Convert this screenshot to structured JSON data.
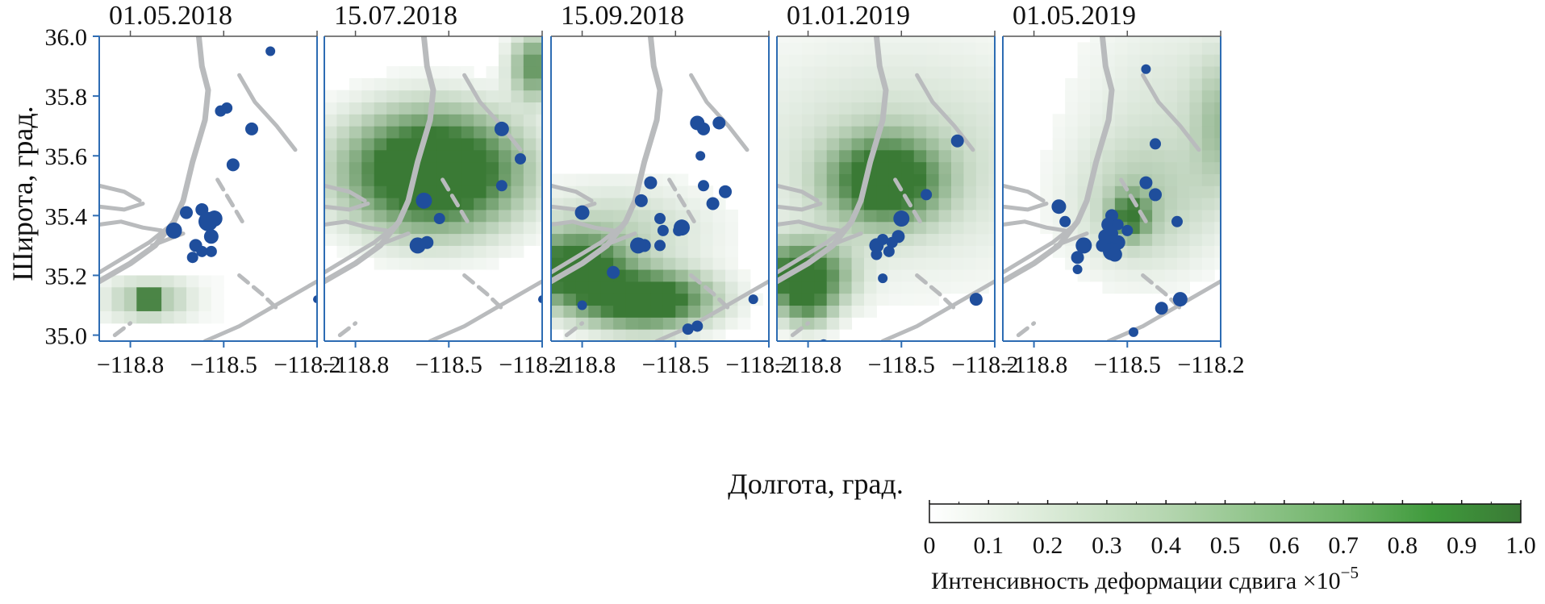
{
  "chart_data": {
    "type": "heatmap",
    "ylabel": "Широта, град.",
    "xlabel": "Долгота, град.",
    "xlim": [
      -118.9,
      -118.2
    ],
    "ylim": [
      34.98,
      36.0
    ],
    "xticks": [
      -118.8,
      -118.5,
      -118.2
    ],
    "xtick_labels": [
      "−118.8",
      "−118.5",
      "−118.2"
    ],
    "yticks": [
      35.0,
      35.2,
      35.4,
      35.6,
      35.8,
      36.0
    ],
    "ytick_labels": [
      "35.0",
      "35.2",
      "35.4",
      "35.6",
      "35.8",
      "36.0"
    ],
    "colorbar": {
      "label": "Интенсивность деформации сдвига ×10",
      "exponent": "−5",
      "range": [
        0,
        1.0
      ],
      "ticks": [
        0,
        0.1,
        0.2,
        0.3,
        0.4,
        0.5,
        0.6,
        0.7,
        0.8,
        0.9,
        1.0
      ],
      "tick_labels": [
        "0",
        "0.1",
        "0.2",
        "0.3",
        "0.4",
        "0.5",
        "0.6",
        "0.7",
        "0.8",
        "0.9",
        "1.0"
      ],
      "color_low": "#ffffff",
      "color_high": "#3a7a35"
    },
    "colors": {
      "quake": "#1f4e9c",
      "fault": "#b9bbbd",
      "frame": "#2d6cb3"
    },
    "faults": [
      [
        [
          -118.58,
          36.0
        ],
        [
          -118.57,
          35.9
        ],
        [
          -118.55,
          35.82
        ],
        [
          -118.56,
          35.72
        ],
        [
          -118.6,
          35.58
        ],
        [
          -118.63,
          35.45
        ],
        [
          -118.66,
          35.38
        ],
        [
          -118.72,
          35.3
        ],
        [
          -118.8,
          35.24
        ],
        [
          -118.9,
          35.18
        ]
      ],
      [
        [
          -118.68,
          35.36
        ],
        [
          -118.74,
          35.31
        ],
        [
          -118.82,
          35.26
        ],
        [
          -118.9,
          35.21
        ]
      ],
      [
        [
          -118.9,
          35.37
        ],
        [
          -118.83,
          35.38
        ],
        [
          -118.76,
          35.36
        ],
        [
          -118.7,
          35.35
        ]
      ],
      [
        [
          -118.9,
          35.43
        ],
        [
          -118.82,
          35.42
        ],
        [
          -118.76,
          35.44
        ]
      ],
      [
        [
          -118.9,
          35.5
        ],
        [
          -118.82,
          35.48
        ],
        [
          -118.77,
          35.45
        ]
      ],
      [
        [
          -118.73,
          35.3
        ],
        [
          -118.63,
          35.34
        ]
      ],
      [
        [
          -118.52,
          35.52
        ],
        [
          -118.48,
          35.45
        ],
        [
          -118.44,
          35.38
        ]
      ],
      [
        [
          -118.45,
          35.2
        ],
        [
          -118.38,
          35.14
        ],
        [
          -118.33,
          35.09
        ]
      ],
      [
        [
          -118.56,
          34.98
        ],
        [
          -118.45,
          35.03
        ],
        [
          -118.35,
          35.09
        ],
        [
          -118.25,
          35.15
        ],
        [
          -118.2,
          35.18
        ]
      ],
      [
        [
          -118.85,
          35.0
        ],
        [
          -118.8,
          35.04
        ]
      ],
      [
        [
          -118.45,
          35.87
        ],
        [
          -118.4,
          35.78
        ],
        [
          -118.33,
          35.7
        ],
        [
          -118.27,
          35.62
        ]
      ]
    ],
    "panels": [
      {
        "date": "01.05.2018",
        "grid": [
          {
            "lon0": -118.9,
            "lat0": 35.16,
            "cols": [
              0.06,
              0.1,
              0.14,
              0.16,
              0.16,
              0.14,
              0.1,
              0.06,
              0.03,
              0.02
            ]
          },
          {
            "lon0": -118.9,
            "lat0": 35.12,
            "cols": [
              0.1,
              0.2,
              0.3,
              0.9,
              0.9,
              0.3,
              0.2,
              0.1,
              0.05,
              0.02
            ]
          },
          {
            "lon0": -118.9,
            "lat0": 35.08,
            "cols": [
              0.1,
              0.2,
              0.3,
              0.9,
              0.9,
              0.3,
              0.2,
              0.1,
              0.05,
              0.02
            ]
          },
          {
            "lon0": -118.9,
            "lat0": 35.04,
            "cols": [
              0.06,
              0.1,
              0.14,
              0.2,
              0.2,
              0.14,
              0.1,
              0.06,
              0.03,
              0.02
            ]
          }
        ],
        "quakes": [
          [
            -118.35,
            35.95,
            6
          ],
          [
            -118.49,
            35.76,
            7
          ],
          [
            -118.51,
            35.75,
            7
          ],
          [
            -118.41,
            35.69,
            8
          ],
          [
            -118.47,
            35.57,
            8
          ],
          [
            -118.62,
            35.41,
            8
          ],
          [
            -118.57,
            35.42,
            8
          ],
          [
            -118.66,
            35.35,
            10
          ],
          [
            -118.55,
            35.38,
            12
          ],
          [
            -118.53,
            35.39,
            10
          ],
          [
            -118.54,
            35.33,
            9
          ],
          [
            -118.59,
            35.3,
            8
          ],
          [
            -118.54,
            35.28,
            7
          ],
          [
            -118.57,
            35.28,
            7
          ],
          [
            -118.6,
            35.26,
            7
          ],
          [
            -118.2,
            35.12,
            5
          ]
        ]
      },
      {
        "date": "15.07.2018",
        "grid": [],
        "quakes": [
          [
            -118.33,
            35.69,
            9
          ],
          [
            -118.27,
            35.59,
            7
          ],
          [
            -118.33,
            35.5,
            7
          ],
          [
            -118.58,
            35.45,
            10
          ],
          [
            -118.53,
            35.39,
            7
          ],
          [
            -118.57,
            35.31,
            8
          ],
          [
            -118.6,
            35.3,
            10
          ],
          [
            -118.2,
            35.12,
            5
          ]
        ]
      },
      {
        "date": "15.09.2018",
        "grid": [],
        "quakes": [
          [
            -118.43,
            35.71,
            9
          ],
          [
            -118.41,
            35.69,
            8
          ],
          [
            -118.36,
            35.71,
            8
          ],
          [
            -118.42,
            35.6,
            6
          ],
          [
            -118.41,
            35.5,
            7
          ],
          [
            -118.58,
            35.51,
            8
          ],
          [
            -118.34,
            35.48,
            8
          ],
          [
            -118.61,
            35.45,
            8
          ],
          [
            -118.38,
            35.44,
            8
          ],
          [
            -118.8,
            35.41,
            9
          ],
          [
            -118.55,
            35.39,
            7
          ],
          [
            -118.48,
            35.36,
            10
          ],
          [
            -118.49,
            35.35,
            7
          ],
          [
            -118.54,
            35.35,
            7
          ],
          [
            -118.6,
            35.3,
            8
          ],
          [
            -118.62,
            35.3,
            10
          ],
          [
            -118.55,
            35.3,
            7
          ],
          [
            -118.7,
            35.21,
            8
          ],
          [
            -118.8,
            35.1,
            6
          ],
          [
            -118.43,
            35.03,
            7
          ],
          [
            -118.46,
            35.02,
            7
          ],
          [
            -118.25,
            35.12,
            6
          ]
        ]
      },
      {
        "date": "01.01.2019",
        "grid": [],
        "quakes": [
          [
            -118.32,
            35.65,
            8
          ],
          [
            -118.42,
            35.47,
            7
          ],
          [
            -118.5,
            35.39,
            10
          ],
          [
            -118.56,
            35.32,
            7
          ],
          [
            -118.58,
            35.3,
            9
          ],
          [
            -118.51,
            35.33,
            8
          ],
          [
            -118.53,
            35.31,
            7
          ],
          [
            -118.54,
            35.28,
            7
          ],
          [
            -118.58,
            35.27,
            7
          ],
          [
            -118.56,
            35.19,
            6
          ],
          [
            -118.26,
            35.12,
            8
          ],
          [
            -118.75,
            34.97,
            6
          ]
        ]
      },
      {
        "date": "01.05.2019",
        "grid": [],
        "quakes": [
          [
            -118.44,
            35.89,
            6
          ],
          [
            -118.41,
            35.64,
            7
          ],
          [
            -118.44,
            35.51,
            8
          ],
          [
            -118.41,
            35.47,
            8
          ],
          [
            -118.34,
            35.38,
            7
          ],
          [
            -118.72,
            35.43,
            9
          ],
          [
            -118.7,
            35.38,
            7
          ],
          [
            -118.55,
            35.4,
            8
          ],
          [
            -118.56,
            35.37,
            9
          ],
          [
            -118.53,
            35.37,
            7
          ],
          [
            -118.5,
            35.35,
            7
          ],
          [
            -118.55,
            35.34,
            8
          ],
          [
            -118.57,
            35.33,
            9
          ],
          [
            -118.55,
            35.31,
            9
          ],
          [
            -118.53,
            35.31,
            9
          ],
          [
            -118.58,
            35.3,
            8
          ],
          [
            -118.55,
            35.28,
            11
          ],
          [
            -118.54,
            35.27,
            9
          ],
          [
            -118.64,
            35.3,
            10
          ],
          [
            -118.66,
            35.26,
            8
          ],
          [
            -118.66,
            35.22,
            6
          ],
          [
            -118.39,
            35.09,
            8
          ],
          [
            -118.33,
            35.12,
            9
          ],
          [
            -118.48,
            35.01,
            6
          ]
        ]
      }
    ]
  }
}
